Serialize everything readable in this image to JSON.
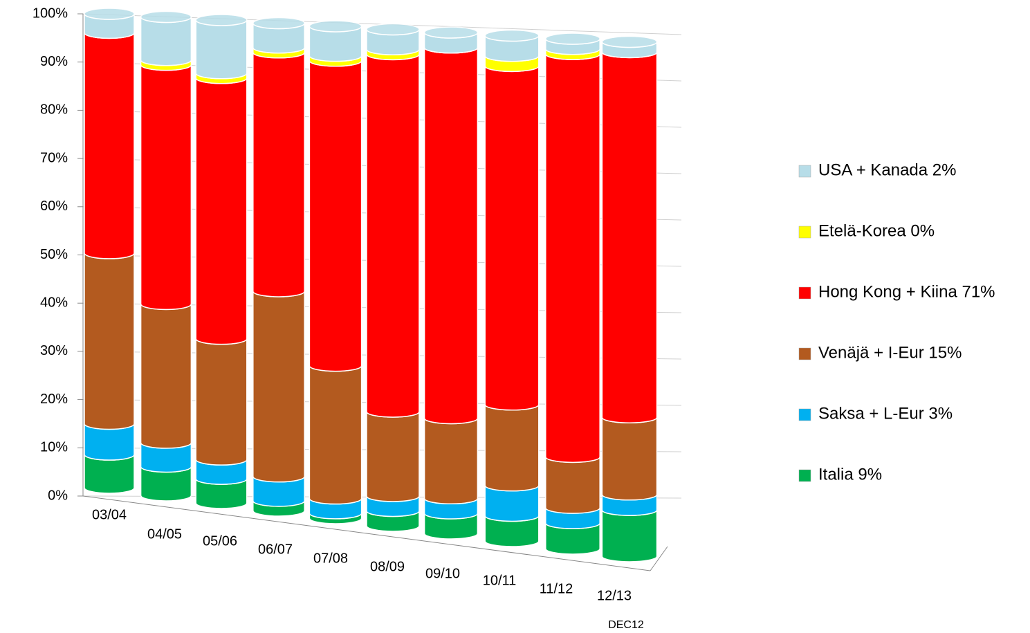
{
  "chart_data": {
    "type": "bar3d_stacked",
    "annotation": "DEC12",
    "categories": [
      "03/04",
      "04/05",
      "05/06",
      "06/07",
      "07/08",
      "08/09",
      "09/10",
      "10/11",
      "11/12",
      "12/13"
    ],
    "series": [
      {
        "name": "Italia 9%",
        "color": "#00b050",
        "values": [
          7,
          6,
          5,
          2,
          1,
          3,
          4,
          5,
          5,
          9
        ]
      },
      {
        "name": "Saksa + L-Eur 3%",
        "color": "#00b0f0",
        "values": [
          6.5,
          5,
          4,
          5,
          3,
          3,
          3,
          6,
          3,
          3
        ]
      },
      {
        "name": "Venäjä + I-Eur 15%",
        "color": "#b35a1f",
        "values": [
          36,
          29,
          25,
          38,
          27,
          17,
          16,
          16,
          10,
          15
        ]
      },
      {
        "name": "Hong Kong + Kiina 71%",
        "color": "#ff0000",
        "values": [
          46.5,
          50,
          54,
          49,
          62,
          72,
          74,
          67,
          79,
          71
        ]
      },
      {
        "name": "Etelä-Korea 0%",
        "color": "#ffff00",
        "values": [
          0,
          1,
          1,
          1,
          1,
          1,
          0,
          2,
          1,
          0
        ]
      },
      {
        "name": "USA + Kanada 2%",
        "color": "#b7dde8",
        "values": [
          4,
          9,
          11,
          5,
          6,
          4,
          3,
          4,
          2,
          2
        ]
      }
    ],
    "ylim": [
      0,
      100
    ],
    "yticks": [
      {
        "value": 0,
        "label": "0%"
      },
      {
        "value": 10,
        "label": "10%"
      },
      {
        "value": 20,
        "label": "20%"
      },
      {
        "value": 30,
        "label": "30%"
      },
      {
        "value": 40,
        "label": "40%"
      },
      {
        "value": 50,
        "label": "50%"
      },
      {
        "value": 60,
        "label": "60%"
      },
      {
        "value": 70,
        "label": "70%"
      },
      {
        "value": 80,
        "label": "80%"
      },
      {
        "value": 90,
        "label": "90%"
      },
      {
        "value": 100,
        "label": "100%"
      }
    ],
    "grid": true
  }
}
